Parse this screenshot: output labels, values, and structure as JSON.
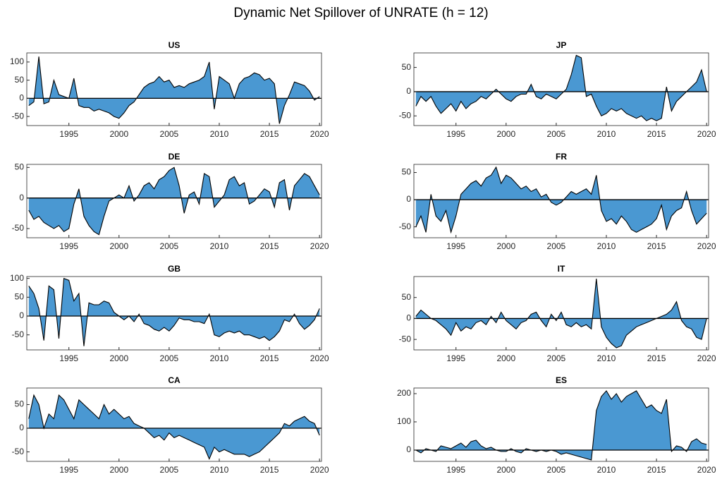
{
  "title": "Dynamic Net Spillover of UNRATE (h = 12)",
  "chart_data": [
    {
      "type": "area",
      "title": "US",
      "color": "#4a98d2",
      "x": [
        1991,
        1991.5,
        1992,
        1992.5,
        1993,
        1993.5,
        1994,
        1994.5,
        1995,
        1995.5,
        1996,
        1996.5,
        1997,
        1997.5,
        1998,
        1998.5,
        1999,
        1999.5,
        2000,
        2000.5,
        2001,
        2001.5,
        2002,
        2002.5,
        2003,
        2003.5,
        2004,
        2004.5,
        2005,
        2005.5,
        2006,
        2006.5,
        2007,
        2007.5,
        2008,
        2008.5,
        2009,
        2009.5,
        2010,
        2010.5,
        2011,
        2011.5,
        2012,
        2012.5,
        2013,
        2013.5,
        2014,
        2014.5,
        2015,
        2015.5,
        2016,
        2016.5,
        2017,
        2017.5,
        2018,
        2018.5,
        2019,
        2019.5,
        2020
      ],
      "values": [
        -20,
        -10,
        115,
        -15,
        -10,
        50,
        10,
        5,
        0,
        55,
        -20,
        -25,
        -25,
        -35,
        -30,
        -35,
        -40,
        -50,
        -55,
        -40,
        -20,
        -10,
        10,
        30,
        40,
        45,
        60,
        45,
        50,
        30,
        35,
        30,
        40,
        45,
        50,
        60,
        100,
        -30,
        60,
        50,
        40,
        0,
        40,
        55,
        60,
        70,
        65,
        50,
        55,
        40,
        -70,
        -20,
        10,
        45,
        40,
        35,
        20,
        -5,
        5
      ],
      "xlim": [
        1990.8,
        2020.2
      ],
      "xticks": [
        1995,
        2000,
        2005,
        2010,
        2015,
        2020
      ],
      "ylim": [
        -75,
        125
      ],
      "yticks": [
        -50,
        0,
        50,
        100
      ]
    },
    {
      "type": "area",
      "title": "JP",
      "color": "#4a98d2",
      "x": [
        1991,
        1991.5,
        1992,
        1992.5,
        1993,
        1993.5,
        1994,
        1994.5,
        1995,
        1995.5,
        1996,
        1996.5,
        1997,
        1997.5,
        1998,
        1998.5,
        1999,
        1999.5,
        2000,
        2000.5,
        2001,
        2001.5,
        2002,
        2002.5,
        2003,
        2003.5,
        2004,
        2004.5,
        2005,
        2005.5,
        2006,
        2006.5,
        2007,
        2007.5,
        2008,
        2008.5,
        2009,
        2009.5,
        2010,
        2010.5,
        2011,
        2011.5,
        2012,
        2012.5,
        2013,
        2013.5,
        2014,
        2014.5,
        2015,
        2015.5,
        2016,
        2016.5,
        2017,
        2017.5,
        2018,
        2018.5,
        2019,
        2019.5,
        2020
      ],
      "values": [
        -30,
        -10,
        -20,
        -10,
        -30,
        -45,
        -35,
        -25,
        -40,
        -20,
        -35,
        -25,
        -20,
        -10,
        -15,
        -5,
        5,
        -5,
        -15,
        -20,
        -10,
        -5,
        -5,
        15,
        -10,
        -15,
        -5,
        -10,
        -15,
        -5,
        5,
        35,
        75,
        70,
        -10,
        -5,
        -30,
        -50,
        -45,
        -35,
        -40,
        -35,
        -45,
        -50,
        -55,
        -50,
        -60,
        -55,
        -60,
        -55,
        10,
        -40,
        -20,
        -10,
        0,
        10,
        20,
        45,
        0
      ],
      "xlim": [
        1990.8,
        2020.2
      ],
      "xticks": [
        1995,
        2000,
        2005,
        2010,
        2015,
        2020
      ],
      "ylim": [
        -70,
        80
      ],
      "yticks": [
        -50,
        0,
        50
      ]
    },
    {
      "type": "area",
      "title": "DE",
      "color": "#4a98d2",
      "x": [
        1991,
        1991.5,
        1992,
        1992.5,
        1993,
        1993.5,
        1994,
        1994.5,
        1995,
        1995.5,
        1996,
        1996.5,
        1997,
        1997.5,
        1998,
        1998.5,
        1999,
        1999.5,
        2000,
        2000.5,
        2001,
        2001.5,
        2002,
        2002.5,
        2003,
        2003.5,
        2004,
        2004.5,
        2005,
        2005.5,
        2006,
        2006.5,
        2007,
        2007.5,
        2008,
        2008.5,
        2009,
        2009.5,
        2010,
        2010.5,
        2011,
        2011.5,
        2012,
        2012.5,
        2013,
        2013.5,
        2014,
        2014.5,
        2015,
        2015.5,
        2016,
        2016.5,
        2017,
        2017.5,
        2018,
        2018.5,
        2019,
        2019.5,
        2020
      ],
      "values": [
        -20,
        -35,
        -30,
        -40,
        -45,
        -50,
        -45,
        -55,
        -50,
        -10,
        15,
        -30,
        -45,
        -55,
        -60,
        -30,
        -5,
        0,
        5,
        0,
        20,
        -5,
        5,
        20,
        25,
        15,
        30,
        35,
        45,
        50,
        20,
        -25,
        5,
        10,
        -10,
        40,
        35,
        -15,
        -5,
        5,
        30,
        35,
        20,
        25,
        -10,
        -5,
        5,
        15,
        10,
        -15,
        25,
        30,
        -20,
        20,
        30,
        40,
        35,
        20,
        5
      ],
      "xlim": [
        1990.8,
        2020.2
      ],
      "xticks": [
        1995,
        2000,
        2005,
        2010,
        2015,
        2020
      ],
      "ylim": [
        -65,
        55
      ],
      "yticks": [
        -50,
        0,
        50
      ]
    },
    {
      "type": "area",
      "title": "FR",
      "color": "#4a98d2",
      "x": [
        1991,
        1991.5,
        1992,
        1992.5,
        1993,
        1993.5,
        1994,
        1994.5,
        1995,
        1995.5,
        1996,
        1996.5,
        1997,
        1997.5,
        1998,
        1998.5,
        1999,
        1999.5,
        2000,
        2000.5,
        2001,
        2001.5,
        2002,
        2002.5,
        2003,
        2003.5,
        2004,
        2004.5,
        2005,
        2005.5,
        2006,
        2006.5,
        2007,
        2007.5,
        2008,
        2008.5,
        2009,
        2009.5,
        2010,
        2010.5,
        2011,
        2011.5,
        2012,
        2012.5,
        2013,
        2013.5,
        2014,
        2014.5,
        2015,
        2015.5,
        2016,
        2016.5,
        2017,
        2017.5,
        2018,
        2018.5,
        2019,
        2019.5,
        2020
      ],
      "values": [
        -50,
        -30,
        -60,
        10,
        -30,
        -40,
        -20,
        -60,
        -30,
        10,
        20,
        30,
        35,
        25,
        40,
        45,
        60,
        30,
        45,
        40,
        30,
        20,
        25,
        15,
        20,
        5,
        10,
        -5,
        -10,
        -5,
        5,
        15,
        10,
        15,
        20,
        10,
        45,
        -20,
        -40,
        -35,
        -45,
        -30,
        -40,
        -55,
        -60,
        -55,
        -50,
        -45,
        -35,
        -10,
        -55,
        -30,
        -20,
        -15,
        15,
        -20,
        -45,
        -35,
        -25
      ],
      "xlim": [
        1990.8,
        2020.2
      ],
      "xticks": [
        1995,
        2000,
        2005,
        2010,
        2015,
        2020
      ],
      "ylim": [
        -70,
        65
      ],
      "yticks": [
        -50,
        0,
        50
      ]
    },
    {
      "type": "area",
      "title": "GB",
      "color": "#4a98d2",
      "x": [
        1991,
        1991.5,
        1992,
        1992.5,
        1993,
        1993.5,
        1994,
        1994.5,
        1995,
        1995.5,
        1996,
        1996.5,
        1997,
        1997.5,
        1998,
        1998.5,
        1999,
        1999.5,
        2000,
        2000.5,
        2001,
        2001.5,
        2002,
        2002.5,
        2003,
        2003.5,
        2004,
        2004.5,
        2005,
        2005.5,
        2006,
        2006.5,
        2007,
        2007.5,
        2008,
        2008.5,
        2009,
        2009.5,
        2010,
        2010.5,
        2011,
        2011.5,
        2012,
        2012.5,
        2013,
        2013.5,
        2014,
        2014.5,
        2015,
        2015.5,
        2016,
        2016.5,
        2017,
        2017.5,
        2018,
        2018.5,
        2019,
        2019.5,
        2020
      ],
      "values": [
        80,
        60,
        20,
        -65,
        80,
        70,
        -60,
        100,
        95,
        40,
        60,
        -80,
        35,
        30,
        30,
        40,
        35,
        10,
        0,
        -10,
        0,
        -15,
        5,
        -20,
        -25,
        -35,
        -40,
        -30,
        -40,
        -25,
        -5,
        -10,
        -10,
        -15,
        -15,
        -20,
        5,
        -50,
        -55,
        -45,
        -40,
        -45,
        -40,
        -50,
        -50,
        -55,
        -60,
        -55,
        -65,
        -55,
        -40,
        -10,
        -15,
        5,
        -20,
        -35,
        -25,
        -10,
        20
      ],
      "xlim": [
        1990.8,
        2020.2
      ],
      "xticks": [
        1995,
        2000,
        2005,
        2010,
        2015,
        2020
      ],
      "ylim": [
        -90,
        105
      ],
      "yticks": [
        -50,
        0,
        50,
        100
      ]
    },
    {
      "type": "area",
      "title": "IT",
      "color": "#4a98d2",
      "x": [
        1991,
        1991.5,
        1992,
        1992.5,
        1993,
        1993.5,
        1994,
        1994.5,
        1995,
        1995.5,
        1996,
        1996.5,
        1997,
        1997.5,
        1998,
        1998.5,
        1999,
        1999.5,
        2000,
        2000.5,
        2001,
        2001.5,
        2002,
        2002.5,
        2003,
        2003.5,
        2004,
        2004.5,
        2005,
        2005.5,
        2006,
        2006.5,
        2007,
        2007.5,
        2008,
        2008.5,
        2009,
        2009.5,
        2010,
        2010.5,
        2011,
        2011.5,
        2012,
        2012.5,
        2013,
        2013.5,
        2014,
        2014.5,
        2015,
        2015.5,
        2016,
        2016.5,
        2017,
        2017.5,
        2018,
        2018.5,
        2019,
        2019.5,
        2020
      ],
      "values": [
        5,
        20,
        10,
        0,
        -5,
        -15,
        -25,
        -40,
        -10,
        -30,
        -20,
        -25,
        -10,
        -5,
        -15,
        5,
        -10,
        15,
        -5,
        -15,
        -25,
        -10,
        -5,
        10,
        15,
        -5,
        -20,
        10,
        -5,
        15,
        -15,
        -20,
        -10,
        -20,
        -15,
        -25,
        95,
        -20,
        -45,
        -60,
        -70,
        -65,
        -40,
        -30,
        -20,
        -15,
        -10,
        -5,
        0,
        5,
        10,
        20,
        40,
        -5,
        -20,
        -25,
        -45,
        -50,
        0
      ],
      "xlim": [
        1990.8,
        2020.2
      ],
      "xticks": [
        1995,
        2000,
        2005,
        2010,
        2015,
        2020
      ],
      "ylim": [
        -75,
        100
      ],
      "yticks": [
        -50,
        0,
        50
      ]
    },
    {
      "type": "area",
      "title": "CA",
      "color": "#4a98d2",
      "x": [
        1991,
        1991.5,
        1992,
        1992.5,
        1993,
        1993.5,
        1994,
        1994.5,
        1995,
        1995.5,
        1996,
        1996.5,
        1997,
        1997.5,
        1998,
        1998.5,
        1999,
        1999.5,
        2000,
        2000.5,
        2001,
        2001.5,
        2002,
        2002.5,
        2003,
        2003.5,
        2004,
        2004.5,
        2005,
        2005.5,
        2006,
        2006.5,
        2007,
        2007.5,
        2008,
        2008.5,
        2009,
        2009.5,
        2010,
        2010.5,
        2011,
        2011.5,
        2012,
        2012.5,
        2013,
        2013.5,
        2014,
        2014.5,
        2015,
        2015.5,
        2016,
        2016.5,
        2017,
        2017.5,
        2018,
        2018.5,
        2019,
        2019.5,
        2020
      ],
      "values": [
        20,
        70,
        50,
        0,
        30,
        20,
        70,
        60,
        40,
        20,
        60,
        50,
        40,
        30,
        20,
        50,
        30,
        40,
        30,
        20,
        25,
        10,
        5,
        0,
        -10,
        -20,
        -15,
        -25,
        -10,
        -20,
        -15,
        -20,
        -25,
        -30,
        -35,
        -40,
        -65,
        -40,
        -50,
        -45,
        -50,
        -55,
        -55,
        -55,
        -60,
        -55,
        -50,
        -40,
        -30,
        -20,
        -10,
        10,
        5,
        15,
        20,
        25,
        15,
        10,
        -15
      ],
      "xlim": [
        1990.8,
        2020.2
      ],
      "xticks": [
        1995,
        2000,
        2005,
        2010,
        2015,
        2020
      ],
      "ylim": [
        -70,
        85
      ],
      "yticks": [
        -50,
        0,
        50
      ]
    },
    {
      "type": "area",
      "title": "ES",
      "color": "#4a98d2",
      "x": [
        1991,
        1991.5,
        1992,
        1992.5,
        1993,
        1993.5,
        1994,
        1994.5,
        1995,
        1995.5,
        1996,
        1996.5,
        1997,
        1997.5,
        1998,
        1998.5,
        1999,
        1999.5,
        2000,
        2000.5,
        2001,
        2001.5,
        2002,
        2002.5,
        2003,
        2003.5,
        2004,
        2004.5,
        2005,
        2005.5,
        2006,
        2006.5,
        2007,
        2007.5,
        2008,
        2008.5,
        2009,
        2009.5,
        2010,
        2010.5,
        2011,
        2011.5,
        2012,
        2012.5,
        2013,
        2013.5,
        2014,
        2014.5,
        2015,
        2015.5,
        2016,
        2016.5,
        2017,
        2017.5,
        2018,
        2018.5,
        2019,
        2019.5,
        2020
      ],
      "values": [
        0,
        -10,
        5,
        0,
        -5,
        15,
        10,
        5,
        15,
        25,
        10,
        30,
        35,
        15,
        5,
        10,
        0,
        -5,
        -5,
        5,
        -5,
        -10,
        5,
        0,
        -5,
        0,
        -5,
        0,
        -5,
        -15,
        -10,
        -15,
        -20,
        -25,
        -30,
        -35,
        140,
        190,
        210,
        180,
        200,
        170,
        190,
        200,
        210,
        180,
        150,
        160,
        140,
        130,
        180,
        -5,
        15,
        10,
        -5,
        30,
        40,
        25,
        20
      ],
      "xlim": [
        1990.8,
        2020.2
      ],
      "xticks": [
        1995,
        2000,
        2005,
        2010,
        2015,
        2020
      ],
      "ylim": [
        -40,
        220
      ],
      "yticks": [
        0,
        100,
        200
      ]
    }
  ]
}
